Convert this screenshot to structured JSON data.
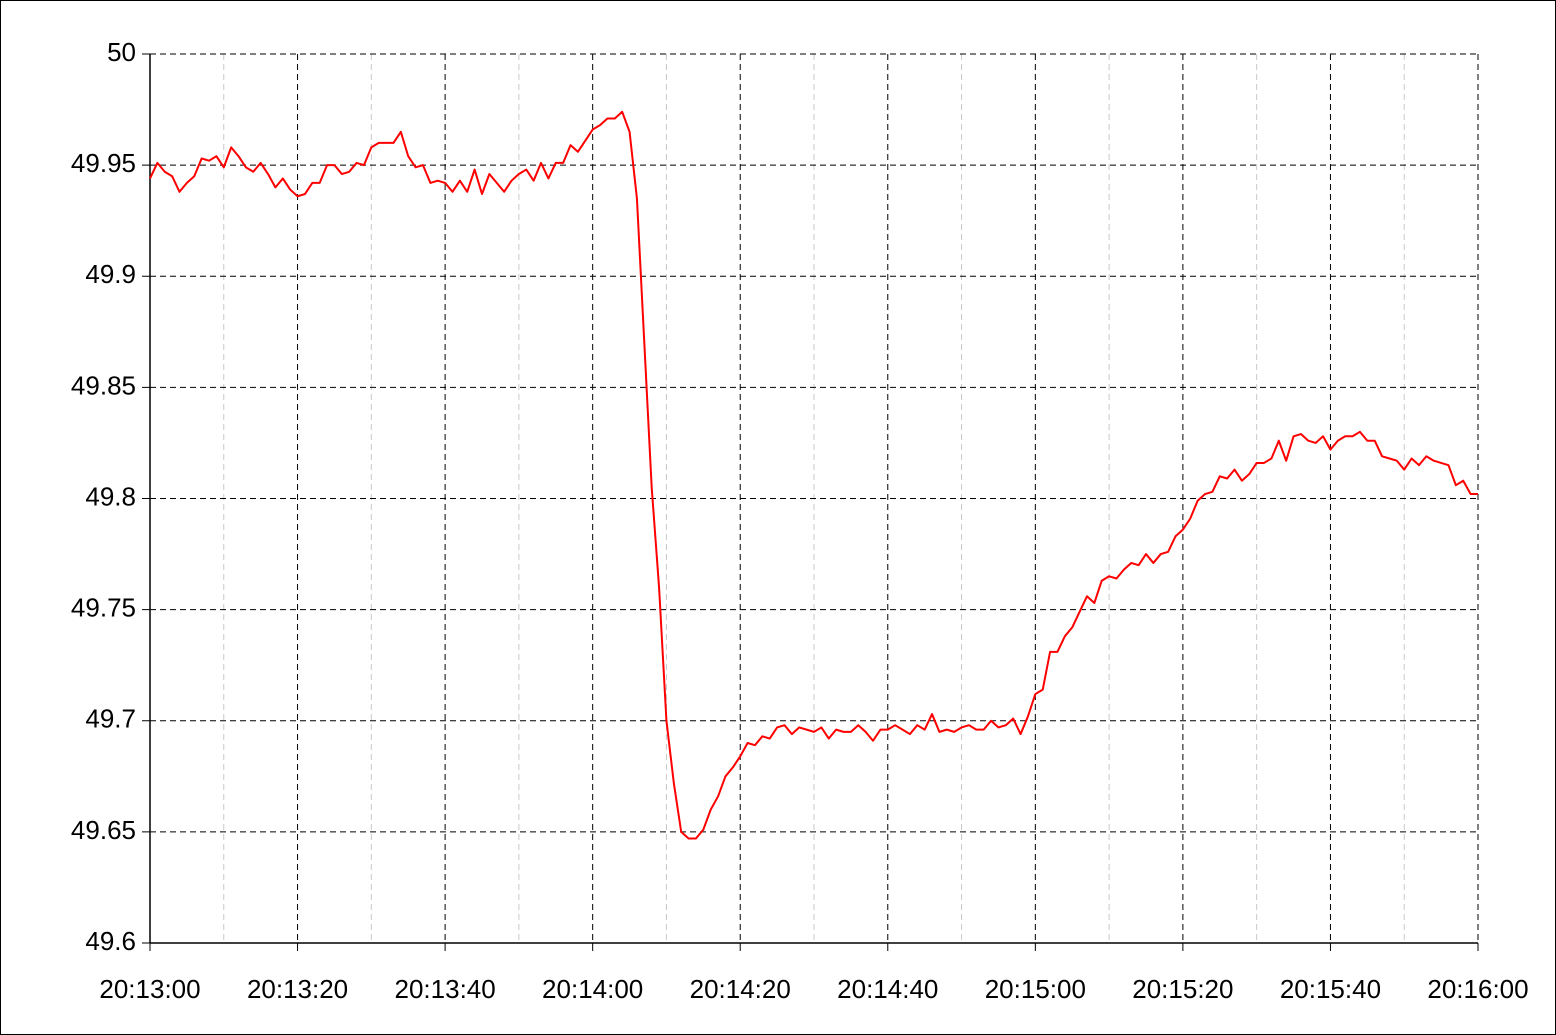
{
  "chart_data": {
    "type": "line",
    "x": [
      "20:13:00",
      "20:13:01",
      "20:13:02",
      "20:13:03",
      "20:13:04",
      "20:13:05",
      "20:13:06",
      "20:13:07",
      "20:13:08",
      "20:13:09",
      "20:13:10",
      "20:13:11",
      "20:13:12",
      "20:13:13",
      "20:13:14",
      "20:13:15",
      "20:13:16",
      "20:13:17",
      "20:13:18",
      "20:13:19",
      "20:13:20",
      "20:13:21",
      "20:13:22",
      "20:13:23",
      "20:13:24",
      "20:13:25",
      "20:13:26",
      "20:13:27",
      "20:13:28",
      "20:13:29",
      "20:13:30",
      "20:13:31",
      "20:13:32",
      "20:13:33",
      "20:13:34",
      "20:13:35",
      "20:13:36",
      "20:13:37",
      "20:13:38",
      "20:13:39",
      "20:13:40",
      "20:13:41",
      "20:13:42",
      "20:13:43",
      "20:13:44",
      "20:13:45",
      "20:13:46",
      "20:13:47",
      "20:13:48",
      "20:13:49",
      "20:13:50",
      "20:13:51",
      "20:13:52",
      "20:13:53",
      "20:13:54",
      "20:13:55",
      "20:13:56",
      "20:13:57",
      "20:13:58",
      "20:13:59",
      "20:14:00",
      "20:14:01",
      "20:14:02",
      "20:14:03",
      "20:14:04",
      "20:14:05",
      "20:14:06",
      "20:14:07",
      "20:14:08",
      "20:14:09",
      "20:14:10",
      "20:14:11",
      "20:14:12",
      "20:14:13",
      "20:14:14",
      "20:14:15",
      "20:14:16",
      "20:14:17",
      "20:14:18",
      "20:14:19",
      "20:14:20",
      "20:14:21",
      "20:14:22",
      "20:14:23",
      "20:14:24",
      "20:14:25",
      "20:14:26",
      "20:14:27",
      "20:14:28",
      "20:14:29",
      "20:14:30",
      "20:14:31",
      "20:14:32",
      "20:14:33",
      "20:14:34",
      "20:14:35",
      "20:14:36",
      "20:14:37",
      "20:14:38",
      "20:14:39",
      "20:14:40",
      "20:14:41",
      "20:14:42",
      "20:14:43",
      "20:14:44",
      "20:14:45",
      "20:14:46",
      "20:14:47",
      "20:14:48",
      "20:14:49",
      "20:14:50",
      "20:14:51",
      "20:14:52",
      "20:14:53",
      "20:14:54",
      "20:14:55",
      "20:14:56",
      "20:14:57",
      "20:14:58",
      "20:14:59",
      "20:15:00",
      "20:15:01",
      "20:15:02",
      "20:15:03",
      "20:15:04",
      "20:15:05",
      "20:15:06",
      "20:15:07",
      "20:15:08",
      "20:15:09",
      "20:15:10",
      "20:15:11",
      "20:15:12",
      "20:15:13",
      "20:15:14",
      "20:15:15",
      "20:15:16",
      "20:15:17",
      "20:15:18",
      "20:15:19",
      "20:15:20",
      "20:15:21",
      "20:15:22",
      "20:15:23",
      "20:15:24",
      "20:15:25",
      "20:15:26",
      "20:15:27",
      "20:15:28",
      "20:15:29",
      "20:15:30",
      "20:15:31",
      "20:15:32",
      "20:15:33",
      "20:15:34",
      "20:15:35",
      "20:15:36",
      "20:15:37",
      "20:15:38",
      "20:15:39",
      "20:15:40",
      "20:15:41",
      "20:15:42",
      "20:15:43",
      "20:15:44",
      "20:15:45",
      "20:15:46",
      "20:15:47",
      "20:15:48",
      "20:15:49",
      "20:15:50",
      "20:15:51",
      "20:15:52",
      "20:15:53",
      "20:15:54",
      "20:15:55",
      "20:15:56",
      "20:15:57",
      "20:15:58",
      "20:15:59",
      "20:16:00"
    ],
    "series": [
      {
        "color": "#ff0000",
        "values": [
          49.944,
          49.951,
          49.947,
          49.945,
          49.938,
          49.942,
          49.945,
          49.953,
          49.952,
          49.954,
          49.949,
          49.958,
          49.954,
          49.949,
          49.947,
          49.951,
          49.946,
          49.94,
          49.944,
          49.939,
          49.936,
          49.937,
          49.942,
          49.942,
          49.95,
          49.95,
          49.946,
          49.947,
          49.951,
          49.95,
          49.958,
          49.96,
          49.96,
          49.96,
          49.965,
          49.954,
          49.949,
          49.95,
          49.942,
          49.943,
          49.942,
          49.938,
          49.943,
          49.938,
          49.948,
          49.937,
          49.946,
          49.942,
          49.938,
          49.943,
          49.946,
          49.948,
          49.943,
          49.951,
          49.944,
          49.951,
          49.951,
          49.959,
          49.956,
          49.961,
          49.966,
          49.968,
          49.971,
          49.971,
          49.974,
          49.965,
          49.935,
          49.87,
          49.805,
          49.76,
          49.7,
          49.672,
          49.65,
          49.647,
          49.647,
          49.651,
          49.66,
          49.666,
          49.675,
          49.679,
          49.684,
          49.69,
          49.689,
          49.693,
          49.692,
          49.697,
          49.698,
          49.694,
          49.697,
          49.696,
          49.695,
          49.697,
          49.692,
          49.696,
          49.695,
          49.695,
          49.698,
          49.695,
          49.691,
          49.696,
          49.696,
          49.698,
          49.696,
          49.694,
          49.698,
          49.696,
          49.703,
          49.695,
          49.696,
          49.695,
          49.697,
          49.698,
          49.696,
          49.696,
          49.7,
          49.697,
          49.698,
          49.701,
          49.694,
          49.702,
          49.712,
          49.714,
          49.731,
          49.731,
          49.738,
          49.742,
          49.749,
          49.756,
          49.753,
          49.763,
          49.765,
          49.764,
          49.768,
          49.771,
          49.77,
          49.775,
          49.771,
          49.775,
          49.776,
          49.783,
          49.786,
          49.791,
          49.799,
          49.802,
          49.803,
          49.81,
          49.809,
          49.813,
          49.808,
          49.811,
          49.816,
          49.816,
          49.818,
          49.826,
          49.817,
          49.828,
          49.829,
          49.826,
          49.825,
          49.828,
          49.822,
          49.826,
          49.828,
          49.828,
          49.83,
          49.826,
          49.826,
          49.819,
          49.818,
          49.817,
          49.813,
          49.818,
          49.815,
          49.819,
          49.817,
          49.816,
          49.815,
          49.806,
          49.808,
          49.802,
          49.802
        ]
      }
    ],
    "xlim": [
      "20:13:00",
      "20:16:00"
    ],
    "xticks": [
      "20:13:00",
      "20:13:20",
      "20:13:40",
      "20:14:00",
      "20:14:20",
      "20:14:40",
      "20:15:00",
      "20:15:20",
      "20:15:40",
      "20:16:00"
    ],
    "ylim": [
      49.6,
      50
    ],
    "yticks": [
      49.6,
      49.65,
      49.7,
      49.75,
      49.8,
      49.85,
      49.9,
      49.95,
      50
    ],
    "grid": true
  }
}
